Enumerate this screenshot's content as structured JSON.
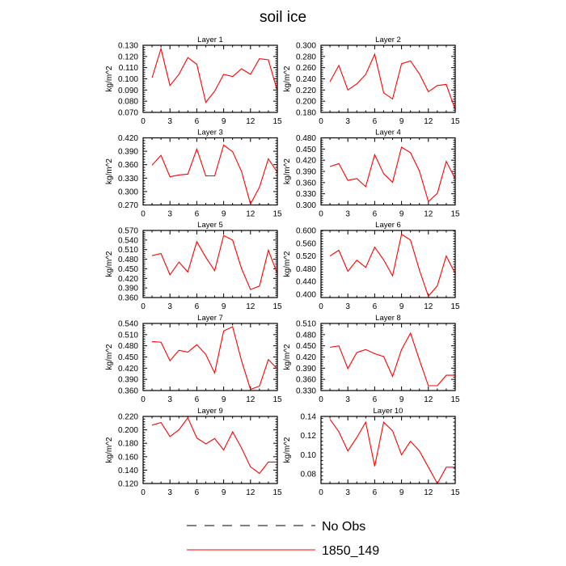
{
  "title": "soil ice",
  "legend": [
    {
      "label": "No Obs",
      "style": "dashed",
      "color": "#000000"
    },
    {
      "label": "1850_149",
      "style": "solid",
      "color": "#ff0000"
    }
  ],
  "chart_data": [
    {
      "type": "line",
      "title": "Layer 1",
      "ylabel": "kg/m^2",
      "xlim": [
        0,
        15
      ],
      "xticks": [
        0,
        3,
        6,
        9,
        12,
        15
      ],
      "ylim": [
        0.07,
        0.13
      ],
      "yticks": [
        "0.070",
        "0.080",
        "0.090",
        "0.100",
        "0.110",
        "0.120",
        "0.130"
      ],
      "x": [
        1,
        2,
        3,
        4,
        5,
        6,
        7,
        8,
        9,
        10,
        11,
        12,
        13,
        14,
        15
      ],
      "series": [
        {
          "name": "1850_149",
          "color": "#ff0000",
          "values": [
            0.101,
            0.127,
            0.094,
            0.104,
            0.119,
            0.113,
            0.079,
            0.089,
            0.104,
            0.102,
            0.109,
            0.104,
            0.118,
            0.117,
            0.089
          ]
        }
      ]
    },
    {
      "type": "line",
      "title": "Layer 2",
      "ylabel": "kg/m^2",
      "xlim": [
        0,
        15
      ],
      "xticks": [
        0,
        3,
        6,
        9,
        12,
        15
      ],
      "ylim": [
        0.18,
        0.3
      ],
      "yticks": [
        "0.180",
        "0.200",
        "0.220",
        "0.240",
        "0.260",
        "0.280",
        "0.300"
      ],
      "x": [
        1,
        2,
        3,
        4,
        5,
        6,
        7,
        8,
        9,
        10,
        11,
        12,
        13,
        14,
        15
      ],
      "series": [
        {
          "name": "1850_149",
          "color": "#ff0000",
          "values": [
            0.235,
            0.264,
            0.22,
            0.231,
            0.248,
            0.284,
            0.215,
            0.204,
            0.267,
            0.272,
            0.249,
            0.217,
            0.228,
            0.23,
            0.185
          ]
        }
      ]
    },
    {
      "type": "line",
      "title": "Layer 3",
      "ylabel": "kg/m^2",
      "xlim": [
        0,
        15
      ],
      "xticks": [
        0,
        3,
        6,
        9,
        12,
        15
      ],
      "ylim": [
        0.27,
        0.42
      ],
      "yticks": [
        "0.270",
        "0.300",
        "0.330",
        "0.360",
        "0.390",
        "0.420"
      ],
      "x": [
        1,
        2,
        3,
        4,
        5,
        6,
        7,
        8,
        9,
        10,
        11,
        12,
        13,
        14,
        15
      ],
      "series": [
        {
          "name": "1850_149",
          "color": "#ff0000",
          "values": [
            0.359,
            0.381,
            0.333,
            0.337,
            0.339,
            0.395,
            0.335,
            0.335,
            0.404,
            0.389,
            0.345,
            0.272,
            0.31,
            0.373,
            0.343
          ]
        }
      ]
    },
    {
      "type": "line",
      "title": "Layer 4",
      "ylabel": "kg/m^2",
      "xlim": [
        0,
        15
      ],
      "xticks": [
        0,
        3,
        6,
        9,
        12,
        15
      ],
      "ylim": [
        0.3,
        0.48
      ],
      "yticks": [
        "0.300",
        "0.330",
        "0.360",
        "0.390",
        "0.420",
        "0.450",
        "0.480"
      ],
      "x": [
        1,
        2,
        3,
        4,
        5,
        6,
        7,
        8,
        9,
        10,
        11,
        12,
        13,
        14,
        15
      ],
      "series": [
        {
          "name": "1850_149",
          "color": "#ff0000",
          "values": [
            0.403,
            0.411,
            0.366,
            0.371,
            0.349,
            0.435,
            0.384,
            0.361,
            0.455,
            0.44,
            0.391,
            0.309,
            0.331,
            0.417,
            0.37
          ]
        }
      ]
    },
    {
      "type": "line",
      "title": "Layer 5",
      "ylabel": "kg/m^2",
      "xlim": [
        0,
        15
      ],
      "xticks": [
        0,
        3,
        6,
        9,
        12,
        15
      ],
      "ylim": [
        0.36,
        0.57
      ],
      "yticks": [
        "0.360",
        "0.390",
        "0.420",
        "0.450",
        "0.480",
        "0.510",
        "0.540",
        "0.570"
      ],
      "x": [
        1,
        2,
        3,
        4,
        5,
        6,
        7,
        8,
        9,
        10,
        11,
        12,
        13,
        14,
        15
      ],
      "series": [
        {
          "name": "1850_149",
          "color": "#ff0000",
          "values": [
            0.491,
            0.498,
            0.431,
            0.471,
            0.44,
            0.535,
            0.486,
            0.444,
            0.554,
            0.54,
            0.451,
            0.385,
            0.396,
            0.508,
            0.435
          ]
        }
      ]
    },
    {
      "type": "line",
      "title": "Layer 6",
      "ylabel": "kg/m^2",
      "xlim": [
        0,
        15
      ],
      "xticks": [
        0,
        3,
        6,
        9,
        12,
        15
      ],
      "ylim": [
        0.39,
        0.6
      ],
      "yticks": [
        "0.400",
        "0.440",
        "0.480",
        "0.520",
        "0.560",
        "0.600"
      ],
      "x": [
        1,
        2,
        3,
        4,
        5,
        6,
        7,
        8,
        9,
        10,
        11,
        12,
        13,
        14,
        15
      ],
      "series": [
        {
          "name": "1850_149",
          "color": "#ff0000",
          "values": [
            0.52,
            0.538,
            0.472,
            0.507,
            0.484,
            0.548,
            0.508,
            0.458,
            0.588,
            0.57,
            0.476,
            0.394,
            0.427,
            0.52,
            0.465
          ]
        }
      ]
    },
    {
      "type": "line",
      "title": "Layer 7",
      "ylabel": "kg/m^2",
      "xlim": [
        0,
        15
      ],
      "xticks": [
        0,
        3,
        6,
        9,
        12,
        15
      ],
      "ylim": [
        0.36,
        0.54
      ],
      "yticks": [
        "0.360",
        "0.390",
        "0.420",
        "0.450",
        "0.480",
        "0.510",
        "0.540"
      ],
      "x": [
        1,
        2,
        3,
        4,
        5,
        6,
        7,
        8,
        9,
        10,
        11,
        12,
        13,
        14,
        15
      ],
      "series": [
        {
          "name": "1850_149",
          "color": "#ff0000",
          "values": [
            0.491,
            0.49,
            0.44,
            0.468,
            0.463,
            0.483,
            0.457,
            0.407,
            0.52,
            0.531,
            0.44,
            0.363,
            0.372,
            0.443,
            0.418
          ]
        }
      ]
    },
    {
      "type": "line",
      "title": "Layer 8",
      "ylabel": "kg/m^2",
      "xlim": [
        0,
        15
      ],
      "xticks": [
        0,
        3,
        6,
        9,
        12,
        15
      ],
      "ylim": [
        0.33,
        0.51
      ],
      "yticks": [
        "0.330",
        "0.360",
        "0.390",
        "0.420",
        "0.450",
        "0.480",
        "0.510"
      ],
      "x": [
        1,
        2,
        3,
        4,
        5,
        6,
        7,
        8,
        9,
        10,
        11,
        12,
        13,
        14,
        15
      ],
      "series": [
        {
          "name": "1850_149",
          "color": "#ff0000",
          "values": [
            0.446,
            0.45,
            0.389,
            0.432,
            0.44,
            0.429,
            0.421,
            0.368,
            0.44,
            0.484,
            0.412,
            0.343,
            0.343,
            0.371,
            0.371
          ]
        }
      ]
    },
    {
      "type": "line",
      "title": "Layer 9",
      "ylabel": "kg/m^2",
      "xlim": [
        0,
        15
      ],
      "xticks": [
        0,
        3,
        6,
        9,
        12,
        15
      ],
      "ylim": [
        0.12,
        0.22
      ],
      "yticks": [
        "0.120",
        "0.140",
        "0.160",
        "0.180",
        "0.200",
        "0.220"
      ],
      "x": [
        1,
        2,
        3,
        4,
        5,
        6,
        7,
        8,
        9,
        10,
        11,
        12,
        13,
        14,
        15
      ],
      "series": [
        {
          "name": "1850_149",
          "color": "#ff0000",
          "values": [
            0.207,
            0.211,
            0.19,
            0.2,
            0.218,
            0.188,
            0.179,
            0.187,
            0.17,
            0.197,
            0.173,
            0.145,
            0.135,
            0.152,
            0.152
          ]
        }
      ]
    },
    {
      "type": "line",
      "title": "Layer 10",
      "ylabel": "kg/m^2",
      "xlim": [
        0,
        15
      ],
      "xticks": [
        0,
        3,
        6,
        9,
        12,
        15
      ],
      "ylim": [
        0.07,
        0.14
      ],
      "yticks": [
        "0.08",
        "0.10",
        "0.12",
        "0.14"
      ],
      "x": [
        1,
        2,
        3,
        4,
        5,
        6,
        7,
        8,
        9,
        10,
        11,
        12,
        13,
        14,
        15
      ],
      "series": [
        {
          "name": "1850_149",
          "color": "#ff0000",
          "values": [
            0.137,
            0.124,
            0.104,
            0.118,
            0.134,
            0.088,
            0.134,
            0.125,
            0.1,
            0.114,
            0.104,
            0.087,
            0.07,
            0.087,
            0.087
          ]
        }
      ]
    }
  ]
}
